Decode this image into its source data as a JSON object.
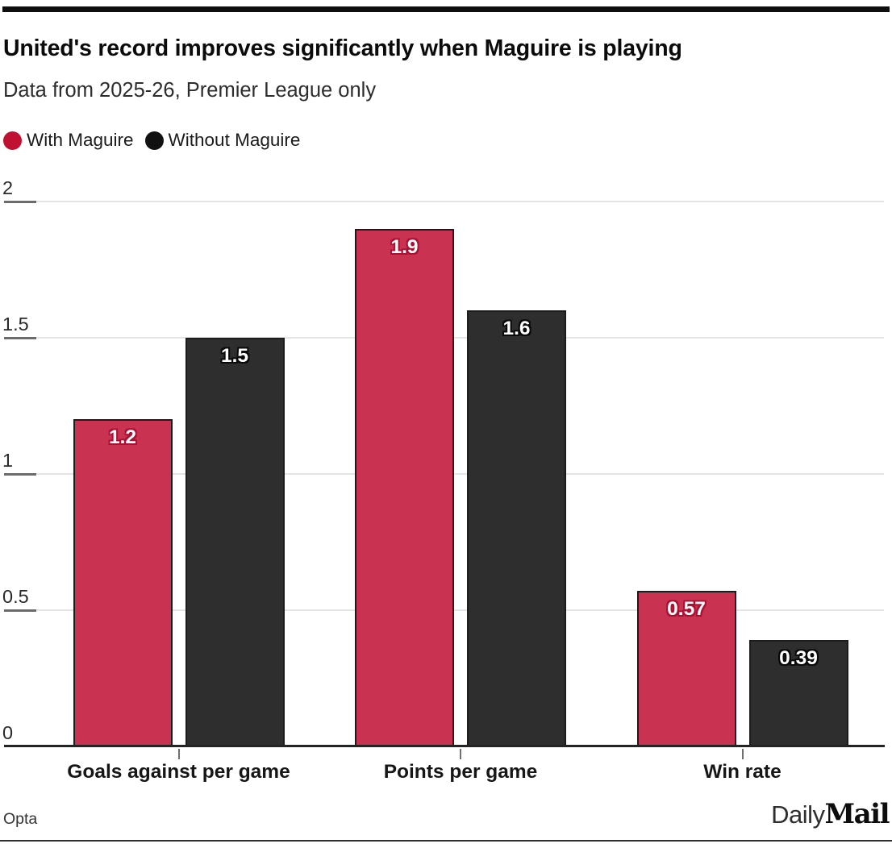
{
  "header": {
    "title": "United's record improves significantly when Maguire is playing",
    "subtitle": "Data from 2025-26, Premier League only"
  },
  "legend": [
    {
      "label": "With Maguire",
      "color": "#c11132"
    },
    {
      "label": "Without Maguire",
      "color": "#111111"
    }
  ],
  "chart_data": {
    "type": "bar",
    "title": "United's record improves significantly when Maguire is playing",
    "subtitle": "Data from 2025-26, Premier League only",
    "categories": [
      "Goals against per game",
      "Points per game",
      "Win rate"
    ],
    "series": [
      {
        "name": "With Maguire",
        "color": "#c93351",
        "label_halo_color": "#ac1133",
        "values": [
          1.2,
          1.9,
          0.57
        ],
        "labels": [
          "1.2",
          "1.9",
          "0.57"
        ]
      },
      {
        "name": "Without Maguire",
        "color": "#2e2e2e",
        "label_halo_color": "#0a0a0a",
        "values": [
          1.5,
          1.6,
          0.39
        ],
        "labels": [
          "1.5",
          "1.6",
          "0.39"
        ]
      }
    ],
    "ylim": [
      0,
      2
    ],
    "yticks": [
      0,
      0.5,
      1,
      1.5,
      2
    ],
    "ytick_labels": [
      "0",
      "0.5",
      "1",
      "1.5",
      "2"
    ],
    "grid": "horizontal",
    "legend_position": "top-left"
  },
  "footer": {
    "source": "Opta",
    "brand_daily": "Daily",
    "brand_mail": "Mail"
  }
}
